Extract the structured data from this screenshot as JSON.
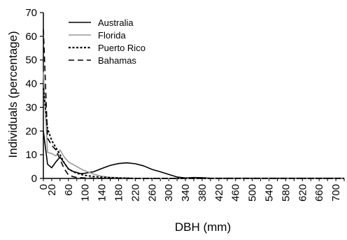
{
  "chart_data": {
    "type": "line",
    "title": "",
    "xlabel": "DBH (mm)",
    "ylabel": "Individuals (percentage)",
    "xlim": [
      0,
      720
    ],
    "ylim": [
      0,
      70
    ],
    "y_ticks": [
      0,
      10,
      20,
      30,
      40,
      50,
      60,
      70
    ],
    "x_ticks": [
      0,
      20,
      60,
      100,
      140,
      180,
      220,
      260,
      300,
      340,
      380,
      420,
      460,
      500,
      540,
      580,
      620,
      660,
      700
    ],
    "grid": false,
    "legend_position": "top-left",
    "series": [
      {
        "name": "Australia",
        "color": "#000000",
        "dash": "solid",
        "points": [
          [
            0,
            20
          ],
          [
            10,
            6
          ],
          [
            20,
            4.5
          ],
          [
            30,
            7
          ],
          [
            40,
            9
          ],
          [
            50,
            6.5
          ],
          [
            60,
            4
          ],
          [
            70,
            3
          ],
          [
            80,
            2.5
          ],
          [
            90,
            2
          ],
          [
            100,
            2.2
          ],
          [
            120,
            2.8
          ],
          [
            140,
            4.2
          ],
          [
            160,
            5.5
          ],
          [
            180,
            6.3
          ],
          [
            200,
            6.6
          ],
          [
            220,
            6.2
          ],
          [
            240,
            5.3
          ],
          [
            260,
            3.8
          ],
          [
            280,
            2.8
          ],
          [
            300,
            1.7
          ],
          [
            320,
            0.6
          ],
          [
            340,
            0.2
          ],
          [
            360,
            0.4
          ],
          [
            380,
            0.3
          ],
          [
            400,
            0.1
          ],
          [
            420,
            0.1
          ],
          [
            440,
            0.1
          ],
          [
            460,
            0.1
          ],
          [
            480,
            0.1
          ],
          [
            500,
            0.1
          ],
          [
            520,
            0.1
          ],
          [
            540,
            0.1
          ],
          [
            560,
            0.1
          ],
          [
            580,
            0.1
          ],
          [
            600,
            0.1
          ],
          [
            620,
            0.1
          ],
          [
            640,
            0.1
          ],
          [
            660,
            0.1
          ],
          [
            680,
            0.1
          ],
          [
            700,
            0.1
          ],
          [
            720,
            0.1
          ]
        ]
      },
      {
        "name": "Florida",
        "color": "#999999",
        "dash": "solid",
        "points": [
          [
            0,
            45
          ],
          [
            10,
            11
          ],
          [
            20,
            10.5
          ],
          [
            30,
            9.5
          ],
          [
            40,
            12
          ],
          [
            50,
            9
          ],
          [
            60,
            7
          ],
          [
            70,
            6
          ],
          [
            80,
            5
          ],
          [
            90,
            4
          ],
          [
            100,
            3.2
          ],
          [
            120,
            1.8
          ],
          [
            140,
            0.9
          ],
          [
            160,
            0.5
          ],
          [
            180,
            0.3
          ],
          [
            200,
            0.2
          ],
          [
            220,
            0.1
          ],
          [
            240,
            0
          ],
          [
            260,
            0
          ],
          [
            280,
            0
          ],
          [
            300,
            0
          ],
          [
            340,
            0
          ],
          [
            720,
            0
          ]
        ]
      },
      {
        "name": "Puerto Rico",
        "color": "#000000",
        "dash": "dotted",
        "points": [
          [
            0,
            38
          ],
          [
            10,
            21
          ],
          [
            20,
            16
          ],
          [
            30,
            13
          ],
          [
            40,
            10
          ],
          [
            50,
            6.5
          ],
          [
            60,
            4
          ],
          [
            70,
            3
          ],
          [
            80,
            2.2
          ],
          [
            90,
            1.7
          ],
          [
            100,
            1.3
          ],
          [
            120,
            0.8
          ],
          [
            140,
            0.5
          ],
          [
            160,
            0.3
          ],
          [
            180,
            0.2
          ],
          [
            200,
            0.1
          ],
          [
            220,
            0
          ],
          [
            260,
            0
          ],
          [
            720,
            0
          ]
        ]
      },
      {
        "name": "Bahamas",
        "color": "#000000",
        "dash": "dashed",
        "points": [
          [
            0,
            63
          ],
          [
            10,
            17
          ],
          [
            20,
            14
          ],
          [
            30,
            12
          ],
          [
            40,
            8
          ],
          [
            50,
            4
          ],
          [
            60,
            1.5
          ],
          [
            70,
            0.8
          ],
          [
            80,
            0.4
          ],
          [
            100,
            0.2
          ],
          [
            120,
            0.1
          ],
          [
            140,
            0
          ],
          [
            720,
            0
          ]
        ]
      }
    ]
  }
}
